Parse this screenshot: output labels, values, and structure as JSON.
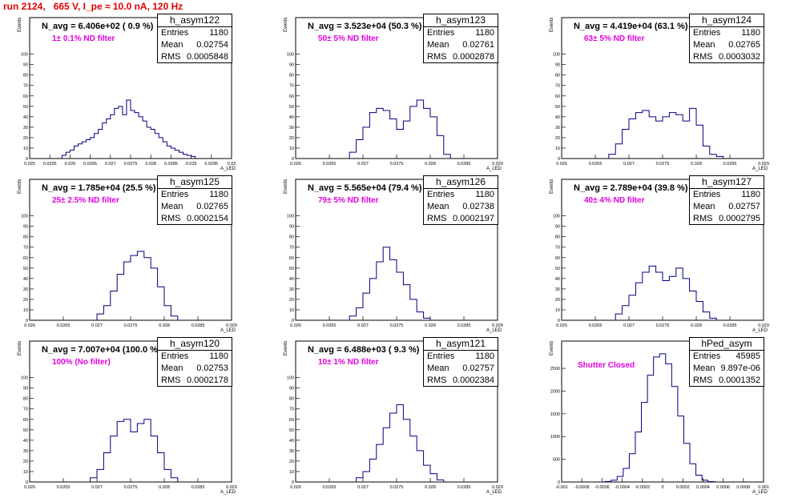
{
  "title": "run 2124,   665 V, I_pe ≈ 10.0 nA, 120 Hz",
  "chart_data": [
    {
      "type": "histogram",
      "name": "h_asym122",
      "stats": {
        "entries": "1180",
        "mean": "0.02754",
        "rms": "0.0005848"
      },
      "n_avg": "N_avg = 6.406e+02 ( 0.9 %)",
      "filter_label": "1± 0.1% ND filter",
      "xlabel": "A_LED",
      "ylabel": "Events",
      "xlim": [
        0.025,
        0.03
      ],
      "ylim": [
        0,
        135
      ],
      "xticks": [
        "0.025",
        "0.0255",
        "0.026",
        "0.0265",
        "0.027",
        "0.0275",
        "0.028",
        "0.0285",
        "0.029",
        "0.0295",
        "0.03"
      ],
      "yticks": [
        "0",
        "10",
        "20",
        "30",
        "40",
        "50",
        "60",
        "70",
        "80",
        "90",
        "100"
      ],
      "bins": [
        0.02585,
        0.02595,
        0.02605,
        0.02615,
        0.02625,
        0.02635,
        0.02645,
        0.02655,
        0.02665,
        0.02675,
        0.02685,
        0.02695,
        0.02705,
        0.02715,
        0.02725,
        0.02735,
        0.02745,
        0.02755,
        0.02765,
        0.02775,
        0.02785,
        0.02795,
        0.02805,
        0.02815,
        0.02825,
        0.02835,
        0.02845,
        0.02855,
        0.02865,
        0.02875,
        0.02885,
        0.02895,
        0.02905
      ],
      "values": [
        3,
        6,
        8,
        12,
        14,
        16,
        18,
        20,
        24,
        28,
        34,
        38,
        42,
        48,
        50,
        42,
        56,
        46,
        44,
        40,
        36,
        30,
        28,
        24,
        20,
        16,
        12,
        10,
        8,
        6,
        4,
        3,
        2
      ]
    },
    {
      "type": "histogram",
      "name": "h_asym123",
      "stats": {
        "entries": "1180",
        "mean": "0.02761",
        "rms": "0.0002878"
      },
      "n_avg": "N_avg = 3.523e+04 (50.3 %)",
      "filter_label": "50± 5% ND filter",
      "xlabel": "A_LED",
      "ylabel": "Events",
      "xlim": [
        0.026,
        0.029
      ],
      "ylim": [
        0,
        135
      ],
      "xticks": [
        "0.026",
        "0.0265",
        "0.027",
        "0.0275",
        "0.028",
        "0.0285",
        "0.029"
      ],
      "yticks": [
        "0",
        "10",
        "20",
        "30",
        "40",
        "50",
        "60",
        "70",
        "80",
        "90",
        "100"
      ],
      "bins": [
        0.02685,
        0.02695,
        0.02705,
        0.02715,
        0.02725,
        0.02735,
        0.02745,
        0.02755,
        0.02765,
        0.02775,
        0.02785,
        0.02795,
        0.02805,
        0.02815,
        0.02825
      ],
      "values": [
        6,
        18,
        30,
        44,
        48,
        46,
        38,
        28,
        36,
        50,
        56,
        48,
        40,
        22,
        4
      ]
    },
    {
      "type": "histogram",
      "name": "h_asym124",
      "stats": {
        "entries": "1180",
        "mean": "0.02765",
        "rms": "0.0003032"
      },
      "n_avg": "N_avg = 4.419e+04 (63.1 %)",
      "filter_label": "63± 5% ND filter",
      "xlabel": "A_LED",
      "ylabel": "Events",
      "xlim": [
        0.026,
        0.029
      ],
      "ylim": [
        0,
        135
      ],
      "xticks": [
        "0.026",
        "0.0265",
        "0.027",
        "0.0275",
        "0.028",
        "0.0285",
        "0.029"
      ],
      "yticks": [
        "0",
        "10",
        "20",
        "30",
        "40",
        "50",
        "60",
        "70",
        "80",
        "90",
        "100"
      ],
      "bins": [
        0.02675,
        0.02685,
        0.02695,
        0.02705,
        0.02715,
        0.02725,
        0.02735,
        0.02745,
        0.02755,
        0.02765,
        0.02775,
        0.02785,
        0.02795,
        0.02805,
        0.02815,
        0.02825,
        0.02835
      ],
      "values": [
        4,
        14,
        28,
        38,
        44,
        46,
        40,
        36,
        40,
        44,
        42,
        36,
        48,
        32,
        12,
        4,
        2
      ]
    },
    {
      "type": "histogram",
      "name": "h_asym125",
      "stats": {
        "entries": "1180",
        "mean": "0.02765",
        "rms": "0.0002154"
      },
      "n_avg": "N_avg = 1.785e+04 (25.5 %)",
      "filter_label": "25± 2.5% ND filter",
      "xlabel": "A_LED",
      "ylabel": "Events",
      "xlim": [
        0.026,
        0.029
      ],
      "ylim": [
        0,
        135
      ],
      "xticks": [
        "0.026",
        "0.0265",
        "0.027",
        "0.0275",
        "0.028",
        "0.0285",
        "0.029"
      ],
      "yticks": [
        "0",
        "10",
        "20",
        "30",
        "40",
        "50",
        "60",
        "70",
        "80",
        "90",
        "100"
      ],
      "bins": [
        0.02705,
        0.02715,
        0.02725,
        0.02735,
        0.02745,
        0.02755,
        0.02765,
        0.02775,
        0.02785,
        0.02795,
        0.02805,
        0.02815
      ],
      "values": [
        6,
        14,
        28,
        44,
        56,
        62,
        66,
        60,
        50,
        32,
        14,
        4
      ]
    },
    {
      "type": "histogram",
      "name": "h_asym126",
      "stats": {
        "entries": "1180",
        "mean": "0.02738",
        "rms": "0.0002197"
      },
      "n_avg": "N_avg = 5.565e+04 (79.4 %)",
      "filter_label": "79± 5% ND filter",
      "xlabel": "A_LED",
      "ylabel": "Events",
      "xlim": [
        0.026,
        0.029
      ],
      "ylim": [
        0,
        135
      ],
      "xticks": [
        "0.026",
        "0.0265",
        "0.027",
        "0.0275",
        "0.028",
        "0.0285",
        "0.029"
      ],
      "yticks": [
        "0",
        "10",
        "20",
        "30",
        "40",
        "50",
        "60",
        "70",
        "80",
        "90",
        "100"
      ],
      "bins": [
        0.02685,
        0.02695,
        0.02705,
        0.02715,
        0.02725,
        0.02735,
        0.02745,
        0.02755,
        0.02765,
        0.02775,
        0.02785,
        0.02795
      ],
      "values": [
        4,
        12,
        26,
        40,
        56,
        70,
        58,
        46,
        34,
        20,
        8,
        2
      ]
    },
    {
      "type": "histogram",
      "name": "h_asym127",
      "stats": {
        "entries": "1180",
        "mean": "0.02757",
        "rms": "0.0002795"
      },
      "n_avg": "N_avg = 2.789e+04 (39.8 %)",
      "filter_label": "40± 4% ND filter",
      "xlabel": "A_LED",
      "ylabel": "Events",
      "xlim": [
        0.026,
        0.029
      ],
      "ylim": [
        0,
        135
      ],
      "xticks": [
        "0.026",
        "0.0265",
        "0.027",
        "0.0275",
        "0.028",
        "0.0285",
        "0.029"
      ],
      "yticks": [
        "0",
        "10",
        "20",
        "30",
        "40",
        "50",
        "60",
        "70",
        "80",
        "90",
        "100"
      ],
      "bins": [
        0.02685,
        0.02695,
        0.02705,
        0.02715,
        0.02725,
        0.02735,
        0.02745,
        0.02755,
        0.02765,
        0.02775,
        0.02785,
        0.02795,
        0.02805,
        0.02815,
        0.02825
      ],
      "values": [
        6,
        14,
        24,
        36,
        46,
        52,
        46,
        38,
        42,
        50,
        40,
        28,
        18,
        8,
        2
      ]
    },
    {
      "type": "histogram",
      "name": "h_asym120",
      "stats": {
        "entries": "1180",
        "mean": "0.02753",
        "rms": "0.0002178"
      },
      "n_avg": "N_avg = 7.007e+04 (100.0 %)",
      "filter_label": "100% (No filter)",
      "xlabel": "A_LED",
      "ylabel": "Events",
      "xlim": [
        0.026,
        0.029
      ],
      "ylim": [
        0,
        135
      ],
      "xticks": [
        "0.026",
        "0.0265",
        "0.027",
        "0.0275",
        "0.028",
        "0.0285",
        "0.029"
      ],
      "yticks": [
        "0",
        "10",
        "20",
        "30",
        "40",
        "50",
        "60",
        "70",
        "80",
        "90",
        "100"
      ],
      "bins": [
        0.02695,
        0.02705,
        0.02715,
        0.02725,
        0.02735,
        0.02745,
        0.02755,
        0.02765,
        0.02775,
        0.02785,
        0.02795,
        0.02805,
        0.02815
      ],
      "values": [
        4,
        12,
        28,
        44,
        58,
        60,
        48,
        56,
        60,
        44,
        28,
        12,
        4
      ]
    },
    {
      "type": "histogram",
      "name": "h_asym121",
      "stats": {
        "entries": "1180",
        "mean": "0.02757",
        "rms": "0.0002384"
      },
      "n_avg": "N_avg = 6.488e+03 ( 9.3 %)",
      "filter_label": "10± 1% ND filter",
      "xlabel": "A_LED",
      "ylabel": "Events",
      "xlim": [
        0.026,
        0.029
      ],
      "ylim": [
        0,
        135
      ],
      "xticks": [
        "0.026",
        "0.0265",
        "0.027",
        "0.0275",
        "0.028",
        "0.0285",
        "0.029"
      ],
      "yticks": [
        "0",
        "10",
        "20",
        "30",
        "40",
        "50",
        "60",
        "70",
        "80",
        "90",
        "100"
      ],
      "bins": [
        0.02695,
        0.02705,
        0.02715,
        0.02725,
        0.02735,
        0.02745,
        0.02755,
        0.02765,
        0.02775,
        0.02785,
        0.02795,
        0.02805,
        0.02815
      ],
      "values": [
        4,
        10,
        22,
        36,
        52,
        66,
        74,
        60,
        44,
        30,
        16,
        8,
        2
      ]
    },
    {
      "type": "histogram",
      "name": "hPed_asym",
      "stats": {
        "entries": "45985",
        "mean": "9.897e-06",
        "rms": "0.0001352"
      },
      "n_avg": "",
      "filter_label": "Shutter Closed",
      "xlabel": "A_LED",
      "ylabel": "Events",
      "xlim": [
        -0.001,
        0.001
      ],
      "ylim": [
        0,
        3100
      ],
      "xticks": [
        "-0.001",
        "-0.0008",
        "-0.0006",
        "-0.0004",
        "-0.0002",
        "0",
        "0.0002",
        "0.0004",
        "0.0006",
        "0.0008",
        "0.001"
      ],
      "yticks": [
        "0",
        "500",
        "1000",
        "1500",
        "2000",
        "2500"
      ],
      "bins": [
        -0.00054,
        -0.00048,
        -0.00042,
        -0.00036,
        -0.0003,
        -0.00024,
        -0.00018,
        -0.00012,
        -6e-05,
        0,
        6e-05,
        0.00012,
        0.00018,
        0.00024,
        0.0003,
        0.00036,
        0.00042,
        0.00048
      ],
      "values": [
        10,
        40,
        120,
        300,
        620,
        1100,
        1750,
        2350,
        2750,
        2820,
        2600,
        2100,
        1450,
        850,
        400,
        150,
        40,
        8
      ]
    }
  ]
}
